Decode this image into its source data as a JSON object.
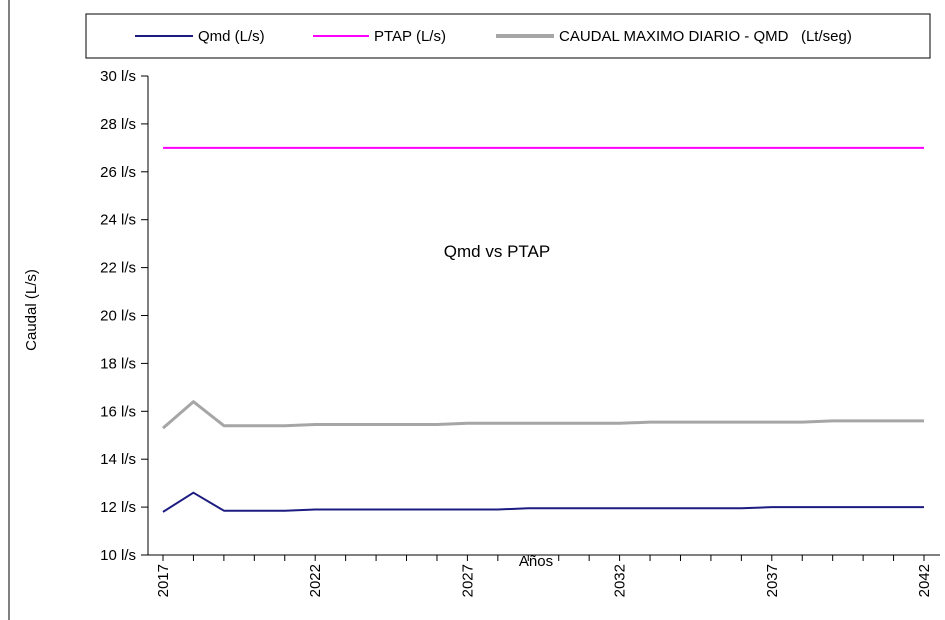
{
  "chart_data": {
    "type": "line",
    "title": "",
    "annotation": "Qmd vs PTAP",
    "xlabel": "Años",
    "ylabel": "Caudal (L/s)",
    "x": [
      2017,
      2018,
      2019,
      2020,
      2021,
      2022,
      2023,
      2024,
      2025,
      2026,
      2027,
      2028,
      2029,
      2030,
      2031,
      2032,
      2033,
      2034,
      2035,
      2036,
      2037,
      2038,
      2039,
      2040,
      2041,
      2042
    ],
    "x_tick_labels": [
      "2017",
      "2022",
      "2027",
      "2032",
      "2037",
      "2042"
    ],
    "ylim": [
      10,
      30
    ],
    "y_tick_values": [
      10,
      12,
      14,
      16,
      18,
      20,
      22,
      24,
      26,
      28,
      30
    ],
    "y_tick_labels": [
      "10 l/s",
      "12 l/s",
      "14 l/s",
      "16 l/s",
      "18 l/s",
      "20 l/s",
      "22 l/s",
      "24 l/s",
      "26 l/s",
      "28 l/s",
      "30 l/s"
    ],
    "grid": false,
    "legend_position": "top",
    "series": [
      {
        "name": "Qmd (L/s)",
        "color": "#1c1c80",
        "values": [
          11.8,
          12.6,
          11.85,
          11.85,
          11.85,
          11.9,
          11.9,
          11.9,
          11.9,
          11.9,
          11.9,
          11.9,
          11.95,
          11.95,
          11.95,
          11.95,
          11.95,
          11.95,
          11.95,
          11.95,
          12.0,
          12.0,
          12.0,
          12.0,
          12.0,
          12.0
        ]
      },
      {
        "name": "PTAP (L/s)",
        "color": "#ff00ff",
        "values": [
          27,
          27,
          27,
          27,
          27,
          27,
          27,
          27,
          27,
          27,
          27,
          27,
          27,
          27,
          27,
          27,
          27,
          27,
          27,
          27,
          27,
          27,
          27,
          27,
          27,
          27
        ]
      },
      {
        "name": "CAUDAL MAXIMO DIARIO - QMD   (Lt/seg)",
        "color": "#a6a6a6",
        "values": [
          15.3,
          16.4,
          15.4,
          15.4,
          15.4,
          15.45,
          15.45,
          15.45,
          15.45,
          15.45,
          15.5,
          15.5,
          15.5,
          15.5,
          15.5,
          15.5,
          15.55,
          15.55,
          15.55,
          15.55,
          15.55,
          15.55,
          15.6,
          15.6,
          15.6,
          15.6
        ]
      }
    ]
  }
}
